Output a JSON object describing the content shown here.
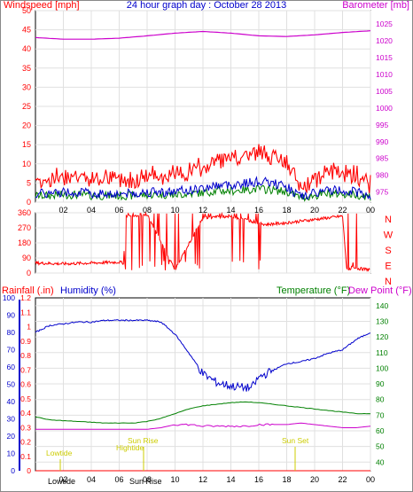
{
  "title": "24 hour graph day : October 28 2013",
  "chart_data": [
    {
      "panel": "wind-baro",
      "type": "line",
      "title": "24 hour graph day : October 28 2013",
      "left_label": "Windspeed [mph]",
      "right_label": "Barometer [mb]",
      "left_ticks": [
        0,
        5,
        10,
        15,
        20,
        25,
        30,
        35,
        40,
        45,
        50
      ],
      "right_ticks": [
        975,
        980,
        985,
        990,
        995,
        1000,
        1005,
        1010,
        1015,
        1020,
        1025
      ],
      "x_ticks": [
        "02",
        "04",
        "06",
        "08",
        "10",
        "12",
        "14",
        "16",
        "18",
        "20",
        "22",
        "00"
      ],
      "ylim_left": [
        0,
        50
      ],
      "ylim_right": [
        972,
        1029
      ],
      "colors": {
        "gust": "#ff0000",
        "avg": "#0000cc",
        "light": "#008000",
        "baro": "#cc00cc"
      },
      "series": [
        {
          "name": "Windspeed [mph]",
          "x": [
            0,
            1,
            2,
            3,
            4,
            5,
            6,
            7,
            8,
            9,
            10,
            11,
            12,
            13,
            14,
            15,
            16,
            17,
            18,
            19,
            20,
            21,
            22,
            23,
            24
          ],
          "values": [
            5,
            5,
            6,
            6,
            5,
            5,
            5,
            5,
            6,
            6,
            6,
            7,
            8,
            10,
            10,
            11,
            12,
            11,
            9,
            3,
            5,
            7,
            7,
            6,
            4
          ]
        },
        {
          "name": "Barometer [mb]",
          "x": [
            0,
            2,
            4,
            6,
            8,
            10,
            12,
            14,
            16,
            18,
            20,
            22,
            24
          ],
          "values": [
            1021,
            1020.5,
            1020.5,
            1020.8,
            1021.5,
            1022.3,
            1022.8,
            1022.3,
            1021.5,
            1021.3,
            1021.8,
            1022.5,
            1023
          ]
        }
      ]
    },
    {
      "panel": "wind-direction",
      "type": "line",
      "left_ticks": [
        0,
        90,
        180,
        270,
        360
      ],
      "right_ticks": [
        "N",
        "W",
        "S",
        "E",
        "N"
      ],
      "ylim": [
        0,
        360
      ],
      "series": [
        {
          "name": "Wind direction",
          "x": [
            0,
            2,
            4,
            6,
            6.3,
            6.5,
            8,
            10,
            12,
            14,
            16,
            16.5,
            18,
            20,
            22,
            22.3,
            22.7,
            24
          ],
          "values": [
            60,
            55,
            60,
            65,
            60,
            340,
            350,
            20,
            330,
            340,
            300,
            290,
            300,
            320,
            340,
            20,
            30,
            20
          ]
        }
      ]
    },
    {
      "panel": "rain-hum-temp",
      "type": "line",
      "labels": {
        "rain": "Rainfall (.in)",
        "hum": "Humidity (%)",
        "temp": "Temperature (°F)",
        "dew": "Dew Point (°F)"
      },
      "rain_ticks": [
        0,
        0.1,
        0.2,
        0.3,
        0.4,
        0.5,
        0.6,
        0.7,
        0.8,
        0.9,
        1,
        1.1,
        1.2
      ],
      "hum_ticks": [
        0,
        10,
        20,
        30,
        40,
        50,
        60,
        70,
        80,
        90,
        100
      ],
      "temp_ticks": [
        40,
        50,
        60,
        70,
        80,
        90,
        100,
        110,
        120,
        130,
        140
      ],
      "x_ticks": [
        "02",
        "04",
        "06",
        "08",
        "10",
        "12",
        "14",
        "16",
        "18",
        "20",
        "22",
        "00"
      ],
      "annotations": [
        "Lowtide",
        "Hightide",
        "Sun Rise",
        "Sun Set"
      ],
      "bottom_labels": [
        "Lowtide",
        "Sun Rise"
      ],
      "series": [
        {
          "name": "Humidity (%)",
          "x": [
            0,
            1,
            2,
            3,
            4,
            5,
            6,
            7,
            8,
            9,
            10,
            11,
            12,
            13,
            14,
            15,
            15.5,
            16,
            17,
            18,
            19,
            20,
            21,
            22,
            23,
            24
          ],
          "values": [
            80,
            84,
            85,
            86,
            86,
            87,
            87,
            87,
            87,
            86,
            79,
            68,
            56,
            51,
            49,
            48,
            48,
            54,
            58,
            62,
            63,
            65,
            68,
            70,
            76,
            80
          ]
        },
        {
          "name": "Temperature (°F)",
          "x": [
            0,
            1,
            2,
            3,
            4,
            5,
            6,
            7,
            8,
            9,
            10,
            11,
            12,
            13,
            14,
            15,
            16,
            17,
            18,
            19,
            20,
            21,
            22,
            23,
            24
          ],
          "values": [
            69,
            67,
            66.5,
            66,
            65.5,
            65,
            65,
            65,
            66,
            68,
            71,
            74,
            76,
            77,
            78,
            78.5,
            78,
            77,
            76,
            75,
            74,
            73,
            72,
            71,
            71
          ]
        },
        {
          "name": "Dew Point (°F)",
          "x": [
            0,
            1,
            2,
            3,
            4,
            5,
            6,
            7,
            8,
            9,
            10,
            11,
            12,
            13,
            14,
            15,
            16,
            17,
            18,
            19,
            20,
            21,
            22,
            23,
            24
          ],
          "values": [
            61,
            61,
            61,
            61,
            61,
            61,
            61,
            61,
            61,
            62,
            64,
            64,
            63,
            63,
            63,
            63,
            64,
            64,
            64,
            65,
            64,
            63,
            62,
            62,
            63
          ]
        },
        {
          "name": "Rainfall (.in)",
          "x": [
            0,
            24
          ],
          "values": [
            0,
            0
          ]
        }
      ]
    }
  ]
}
